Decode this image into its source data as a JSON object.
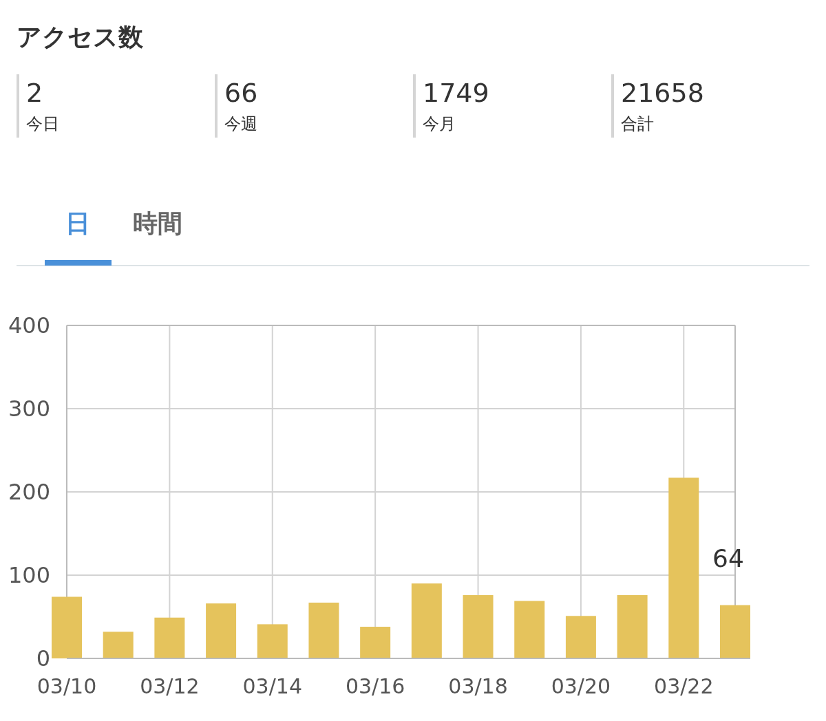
{
  "chart_data": [
    {
      "type": "other",
      "title": "アクセス数",
      "annotations": [
        "2",
        "今日",
        "66",
        "今週",
        "1749",
        "今月",
        "21658",
        "合計",
        "日",
        "時間"
      ]
    },
    {
      "type": "bar",
      "categories": [
        "03/10",
        null,
        "03/12",
        null,
        "03/14",
        null,
        "03/16",
        null,
        "03/18",
        null,
        "03/20",
        null,
        "03/22",
        null
      ],
      "values": [
        74,
        32,
        49,
        66,
        41,
        67,
        38,
        90,
        76,
        69,
        51,
        76,
        217,
        64
      ],
      "color": "#e5c35c",
      "ylim": [
        0,
        400
      ],
      "yticks": [
        0,
        100,
        200,
        300,
        400
      ],
      "grid": true,
      "value_labels": [
        null,
        null,
        null,
        null,
        null,
        null,
        null,
        null,
        null,
        null,
        null,
        null,
        null,
        "64"
      ]
    }
  ]
}
